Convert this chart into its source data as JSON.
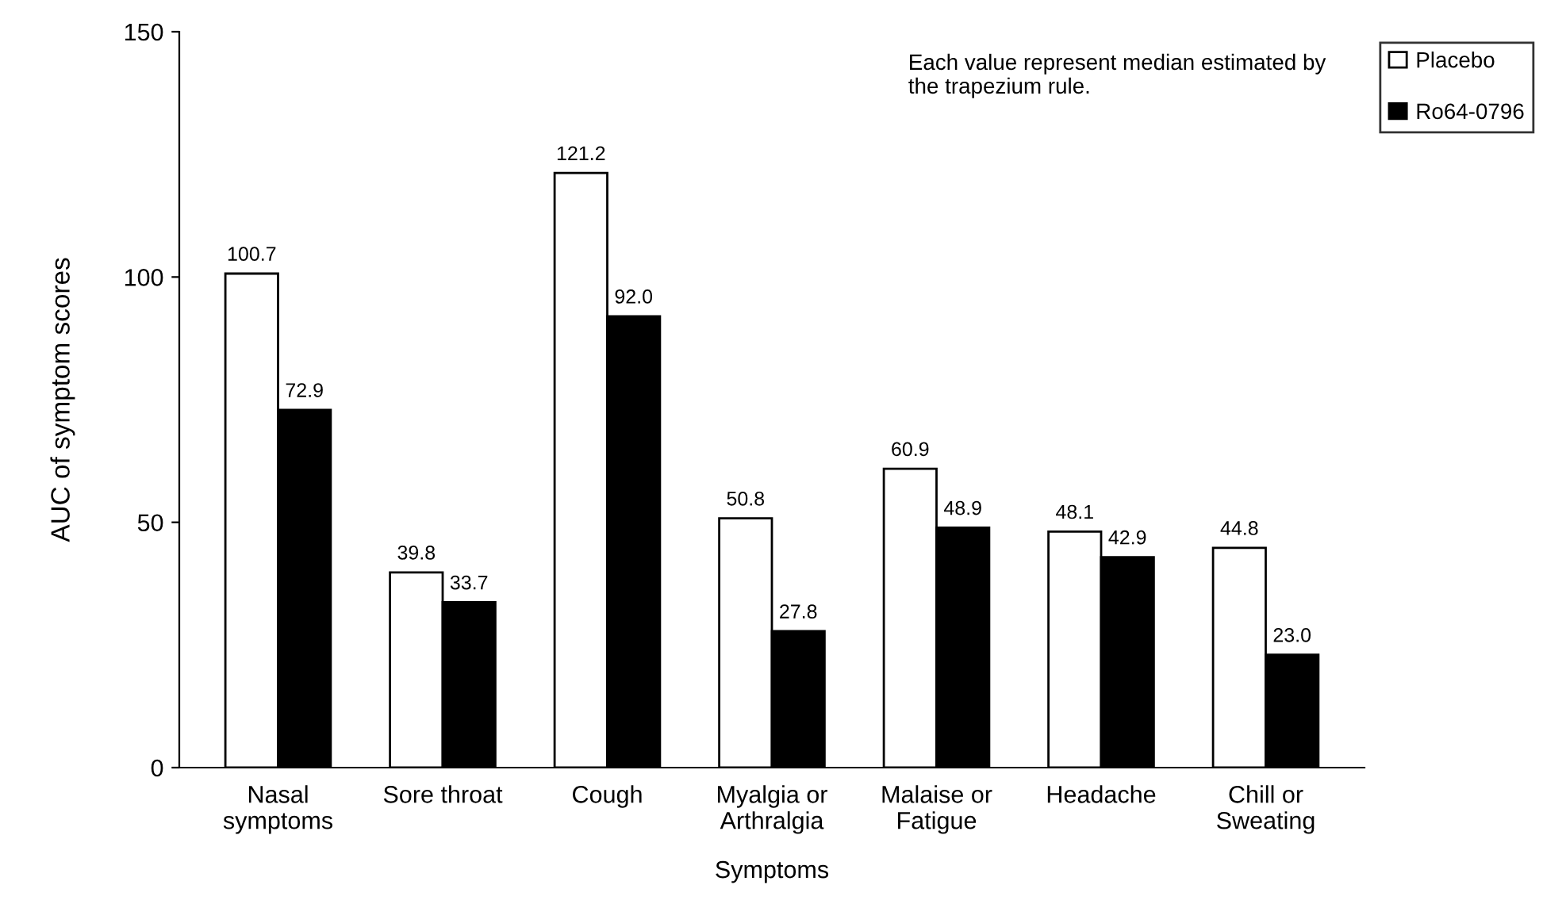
{
  "chart_data": {
    "type": "bar",
    "xlabel": "Symptoms",
    "ylabel": "AUC of symptom scores",
    "categories": [
      "Nasal\nsymptoms",
      "Sore throat",
      "Cough",
      "Myalgia or\nArthralgia",
      "Malaise or\nFatigue",
      "Headache",
      "Chill or\nSweating"
    ],
    "series": [
      {
        "name": "Placebo",
        "color": "#ffffff",
        "values": [
          100.7,
          39.8,
          121.2,
          50.8,
          60.9,
          48.1,
          44.8
        ],
        "value_labels": [
          "100.7",
          "39.8",
          "121.2",
          "50.8",
          "60.9",
          "48.1",
          "44.8"
        ]
      },
      {
        "name": "Ro64-0796",
        "color": "#000000",
        "values": [
          72.9,
          33.7,
          92.0,
          27.8,
          48.9,
          42.9,
          23.0
        ],
        "value_labels": [
          "72.9",
          "33.7",
          "92.0",
          "27.8",
          "48.9",
          "42.9",
          "23.0"
        ]
      }
    ],
    "ylim": [
      0,
      150
    ],
    "yticks": [
      0,
      50,
      100,
      150
    ],
    "grid": false,
    "legend": "top right",
    "annotations": [
      "Each value represent median estimated by\nthe trapezium rule."
    ]
  }
}
